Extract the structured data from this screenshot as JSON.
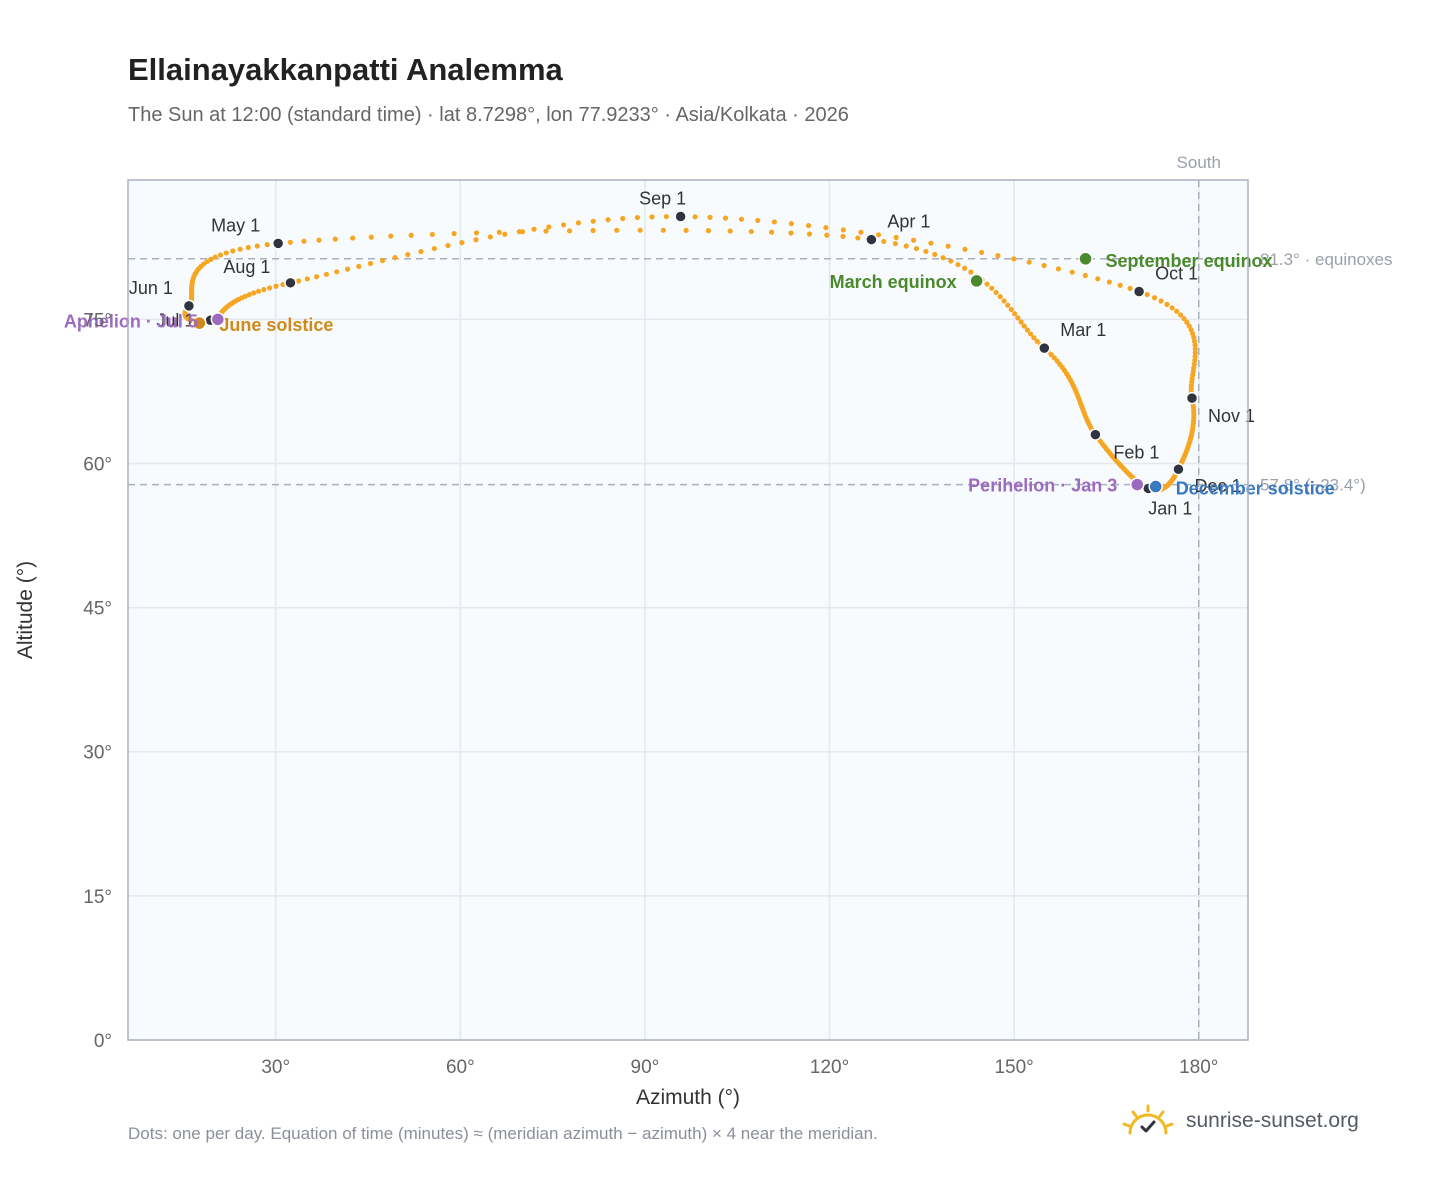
{
  "title": "Ellainayakkanpatti Analemma",
  "subtitle": "The Sun at 12:00 (standard time) · lat 8.7298°, lon 77.9233° · Asia/Kolkata · 2026",
  "footnote": "Dots: one per day. Equation of time (minutes) ≈ (meridian azimuth − azimuth) × 4 near the meridian.",
  "brand": {
    "name": "sunrise-sunset.org",
    "icon": "sun-check-logo"
  },
  "colors": {
    "curve": "#f5a623",
    "month": "#2f3440",
    "equinox": "#4a8a2c",
    "june_solstice": "#d08a1c",
    "december_solstice": "#3a78c0",
    "perihelion": "#9c6bbf",
    "aphelion": "#9c6bbf",
    "plot_bg": "#f8fbfd",
    "grid": "#e3e8ee",
    "reference": "#a8b0bb"
  },
  "chart_data": {
    "type": "scatter",
    "title": "Ellainayakkanpatti Analemma",
    "xlabel": "Azimuth (°)",
    "ylabel": "Altitude (°)",
    "xlim": [
      6,
      188
    ],
    "ylim": [
      0,
      89.5
    ],
    "xticks": [
      30,
      60,
      90,
      120,
      150,
      180
    ],
    "xtick_labels": [
      "30°",
      "60°",
      "90°",
      "120°",
      "150°",
      "180°"
    ],
    "yticks": [
      0,
      15,
      30,
      45,
      60,
      75
    ],
    "ytick_labels": [
      "0°",
      "15°",
      "30°",
      "45°",
      "60°",
      "75°"
    ],
    "grid": true,
    "reference_lines": [
      {
        "orientation": "vertical",
        "x": 180,
        "label": "South"
      },
      {
        "orientation": "horizontal",
        "y": 81.3,
        "label": "81.3° · equinoxes"
      },
      {
        "orientation": "horizontal",
        "y": 57.8,
        "label": "57.8° (−23.4°)"
      }
    ],
    "month_markers": [
      {
        "label": "Jan 1",
        "azimuth": 171.8,
        "altitude": 57.4
      },
      {
        "label": "Feb 1",
        "azimuth": 163.2,
        "altitude": 63.0
      },
      {
        "label": "Mar 1",
        "azimuth": 154.9,
        "altitude": 72.0
      },
      {
        "label": "Apr 1",
        "azimuth": 126.8,
        "altitude": 83.3
      },
      {
        "label": "May 1",
        "azimuth": 30.4,
        "altitude": 82.9
      },
      {
        "label": "Jun 1",
        "azimuth": 15.9,
        "altitude": 76.4
      },
      {
        "label": "Jul 1",
        "azimuth": 19.4,
        "altitude": 74.9
      },
      {
        "label": "Aug 1",
        "azimuth": 32.4,
        "altitude": 78.8
      },
      {
        "label": "Sep 1",
        "azimuth": 95.8,
        "altitude": 85.7
      },
      {
        "label": "Oct 1",
        "azimuth": 170.3,
        "altitude": 77.9
      },
      {
        "label": "Nov 1",
        "azimuth": 178.9,
        "altitude": 66.8
      },
      {
        "label": "Dec 1",
        "azimuth": 176.7,
        "altitude": 59.4
      }
    ],
    "events": [
      {
        "label": "March equinox",
        "azimuth": 143.9,
        "altitude": 79.0,
        "color_key": "equinox"
      },
      {
        "label": "June solstice",
        "azimuth": 17.6,
        "altitude": 74.6,
        "color_key": "june_solstice"
      },
      {
        "label": "Aphelion · Jul 5",
        "azimuth": 20.6,
        "altitude": 75.0,
        "color_key": "aphelion"
      },
      {
        "label": "September equinox",
        "azimuth": 161.6,
        "altitude": 81.3,
        "color_key": "equinox"
      },
      {
        "label": "Perihelion · Jan 3",
        "azimuth": 170.0,
        "altitude": 57.8,
        "color_key": "perihelion"
      },
      {
        "label": "December solstice",
        "azimuth": 173.0,
        "altitude": 57.6,
        "color_key": "december_solstice"
      }
    ]
  }
}
